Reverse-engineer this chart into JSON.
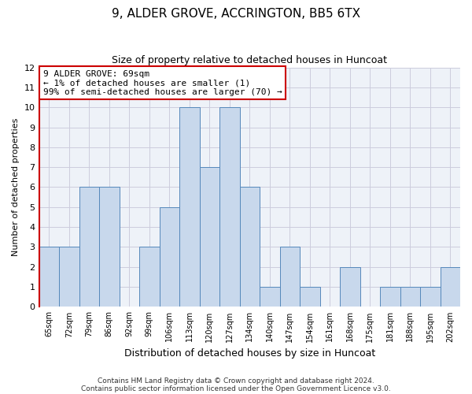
{
  "title": "9, ALDER GROVE, ACCRINGTON, BB5 6TX",
  "subtitle": "Size of property relative to detached houses in Huncoat",
  "xlabel": "Distribution of detached houses by size in Huncoat",
  "ylabel": "Number of detached properties",
  "bar_labels": [
    "65sqm",
    "72sqm",
    "79sqm",
    "86sqm",
    "92sqm",
    "99sqm",
    "106sqm",
    "113sqm",
    "120sqm",
    "127sqm",
    "134sqm",
    "140sqm",
    "147sqm",
    "154sqm",
    "161sqm",
    "168sqm",
    "175sqm",
    "181sqm",
    "188sqm",
    "195sqm",
    "202sqm"
  ],
  "bar_values": [
    3,
    3,
    6,
    6,
    0,
    3,
    5,
    10,
    7,
    10,
    6,
    1,
    3,
    1,
    0,
    2,
    0,
    1,
    1,
    1,
    2
  ],
  "bar_color": "#c8d8ec",
  "bar_edge_color": "#5588bb",
  "annotation_line1": "9 ALDER GROVE: 69sqm",
  "annotation_line2": "← 1% of detached houses are smaller (1)",
  "annotation_line3": "99% of semi-detached houses are larger (70) →",
  "ylim": [
    0,
    12
  ],
  "yticks": [
    0,
    1,
    2,
    3,
    4,
    5,
    6,
    7,
    8,
    9,
    10,
    11,
    12
  ],
  "footnote1": "Contains HM Land Registry data © Crown copyright and database right 2024.",
  "footnote2": "Contains public sector information licensed under the Open Government Licence v3.0.",
  "grid_color": "#ccccdd",
  "background_color": "#eef2f8",
  "fig_background": "#ffffff",
  "red_line_color": "#cc0000",
  "box_edge_color": "#cc0000",
  "title_fontsize": 11,
  "subtitle_fontsize": 9,
  "ylabel_fontsize": 8,
  "xlabel_fontsize": 9,
  "tick_fontsize": 8,
  "xtick_fontsize": 7,
  "footnote_fontsize": 6.5
}
